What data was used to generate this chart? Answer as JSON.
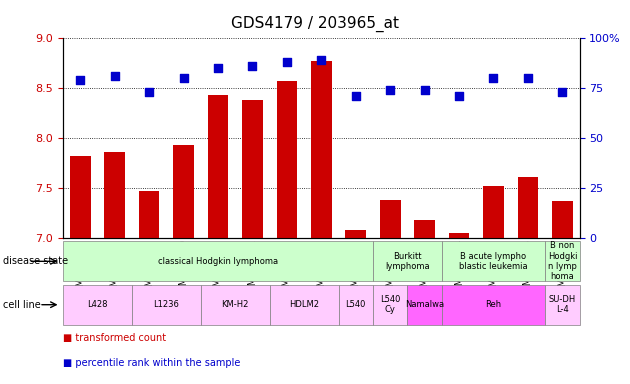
{
  "title": "GDS4179 / 203965_at",
  "samples": [
    "GSM499721",
    "GSM499729",
    "GSM499722",
    "GSM499730",
    "GSM499723",
    "GSM499731",
    "GSM499724",
    "GSM499732",
    "GSM499725",
    "GSM499726",
    "GSM499728",
    "GSM499734",
    "GSM499727",
    "GSM499733",
    "GSM499735"
  ],
  "transformed_count": [
    7.82,
    7.86,
    7.47,
    7.93,
    8.43,
    8.38,
    8.57,
    8.77,
    7.08,
    7.38,
    7.18,
    7.05,
    7.52,
    7.61,
    7.37
  ],
  "percentile_rank": [
    79,
    81,
    73,
    80,
    85,
    86,
    88,
    89,
    71,
    74,
    74,
    71,
    80,
    80,
    73
  ],
  "ylim_left": [
    7.0,
    9.0
  ],
  "ylim_right": [
    0,
    100
  ],
  "bar_color": "#cc0000",
  "dot_color": "#0000cc",
  "dot_size": 6,
  "bar_width": 0.6,
  "grid_color": "#000000",
  "title_fontsize": 11,
  "tick_label_fontsize": 7,
  "disease_state_row": {
    "groups": [
      {
        "label": "classical Hodgkin lymphoma",
        "start": 0,
        "end": 8,
        "color": "#ccffcc"
      },
      {
        "label": "Burkitt\nlymphoma",
        "start": 9,
        "end": 10,
        "color": "#ccffcc"
      },
      {
        "label": "B acute lympho\nblastic leukemia",
        "start": 11,
        "end": 13,
        "color": "#ccffcc"
      },
      {
        "label": "B non\nHodgki\nn lymp\nhoma",
        "start": 14,
        "end": 14,
        "color": "#ccffcc"
      }
    ]
  },
  "cell_line_row": {
    "groups": [
      {
        "label": "L428",
        "start": 0,
        "end": 1,
        "color": "#ffccff"
      },
      {
        "label": "L1236",
        "start": 2,
        "end": 3,
        "color": "#ffccff"
      },
      {
        "label": "KM-H2",
        "start": 4,
        "end": 5,
        "color": "#ffccff"
      },
      {
        "label": "HDLM2",
        "start": 6,
        "end": 7,
        "color": "#ffccff"
      },
      {
        "label": "L540",
        "start": 8,
        "end": 8,
        "color": "#ffccff"
      },
      {
        "label": "L540\nCy",
        "start": 9,
        "end": 9,
        "color": "#ffccff"
      },
      {
        "label": "Namalwa",
        "start": 10,
        "end": 10,
        "color": "#ff66ff"
      },
      {
        "label": "Reh",
        "start": 11,
        "end": 13,
        "color": "#ff66ff"
      },
      {
        "label": "SU-DH\nL-4",
        "start": 14,
        "end": 14,
        "color": "#ffccff"
      }
    ]
  },
  "left_yticks": [
    7.0,
    7.5,
    8.0,
    8.5,
    9.0
  ],
  "right_yticks": [
    0,
    25,
    50,
    75,
    100
  ],
  "left_tick_color": "#cc0000",
  "right_tick_color": "#0000cc"
}
